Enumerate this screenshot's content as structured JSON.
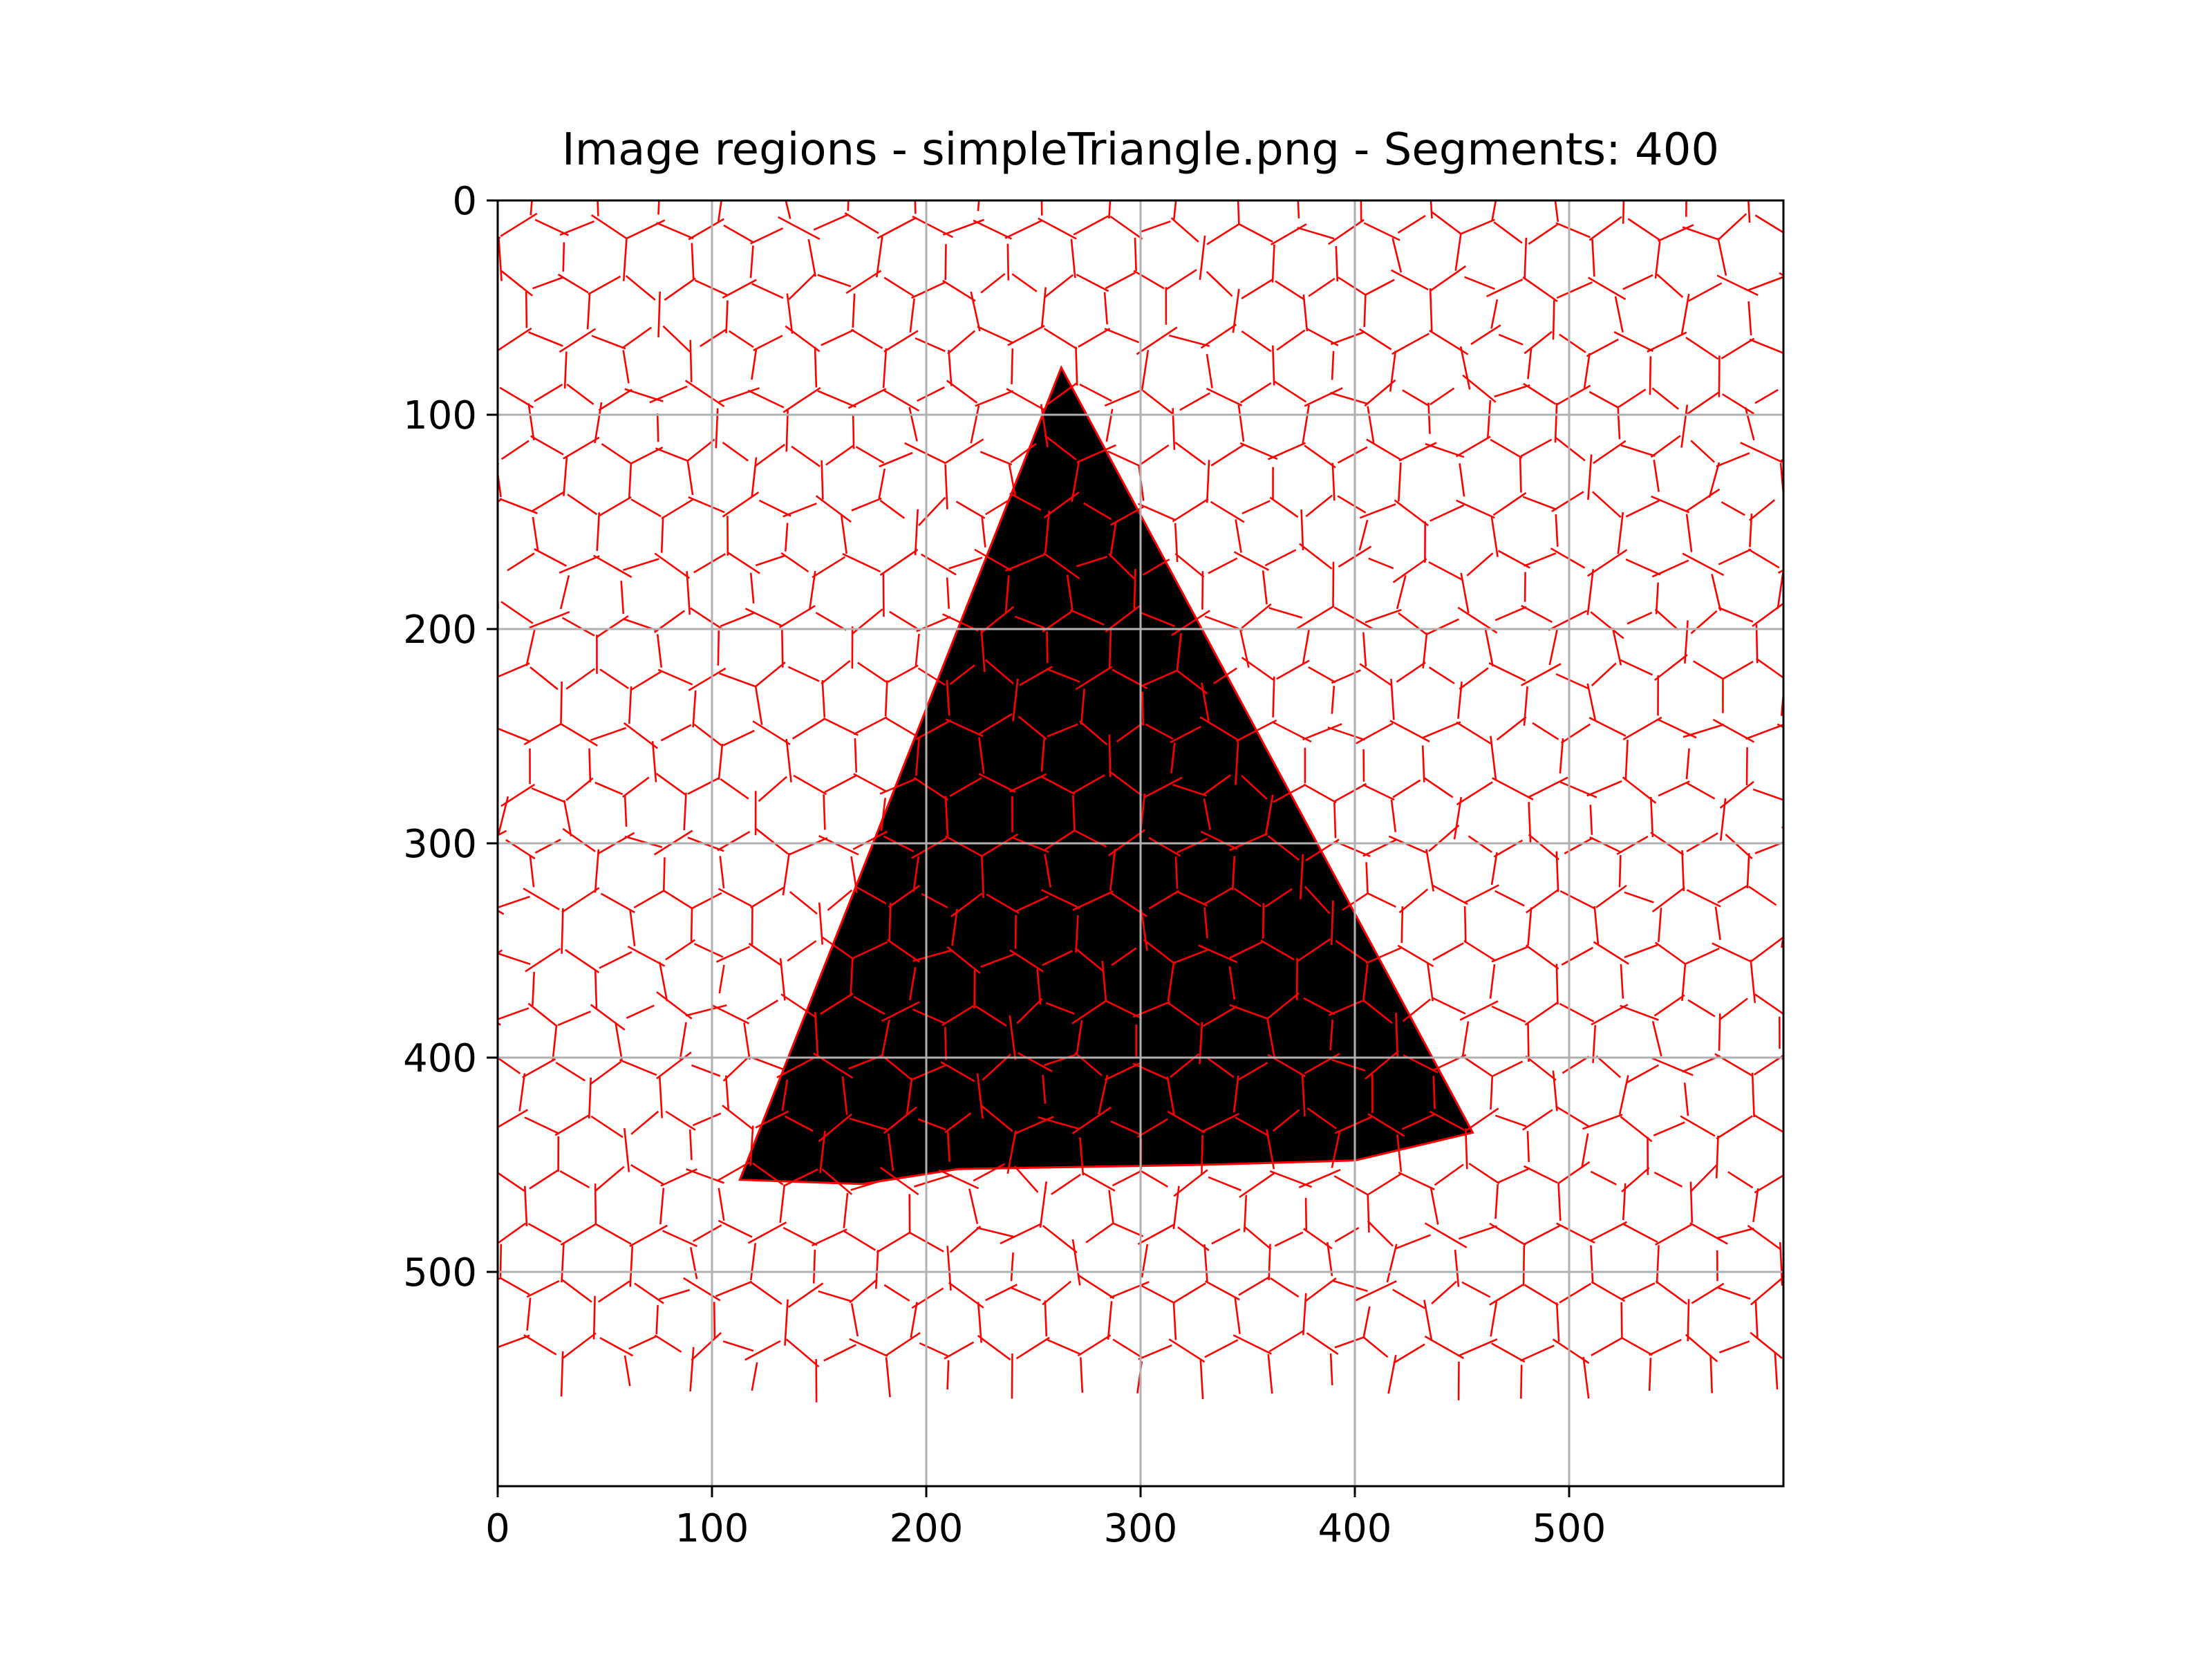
{
  "chart_data": {
    "type": "image",
    "title": "Image regions - simpleTriangle.png - Segments: 400",
    "xlim": [
      0,
      600
    ],
    "ylim": [
      600,
      0
    ],
    "y_axis_inverted": true,
    "x_ticks": [
      0,
      100,
      200,
      300,
      400,
      500
    ],
    "y_ticks": [
      0,
      100,
      200,
      300,
      400,
      500
    ],
    "grid": true,
    "image_content": {
      "description_shape": "black filled triangle on white background",
      "triangle_vertices": [
        [
          263,
          78
        ],
        [
          455,
          435
        ],
        [
          113,
          457
        ]
      ],
      "bottom_edge_midpoints": [
        [
          170,
          459
        ],
        [
          215,
          452
        ],
        [
          330,
          450
        ],
        [
          400,
          448
        ]
      ]
    },
    "segmentation": {
      "segments": 400,
      "grid_spacing_approx": 30,
      "boundary_color": "#ff0000"
    },
    "colors": {
      "shape": "#000000",
      "background": "#ffffff",
      "boundaries": "#ff0000",
      "grid": "#b0b0b0",
      "axes": "#000000"
    }
  }
}
